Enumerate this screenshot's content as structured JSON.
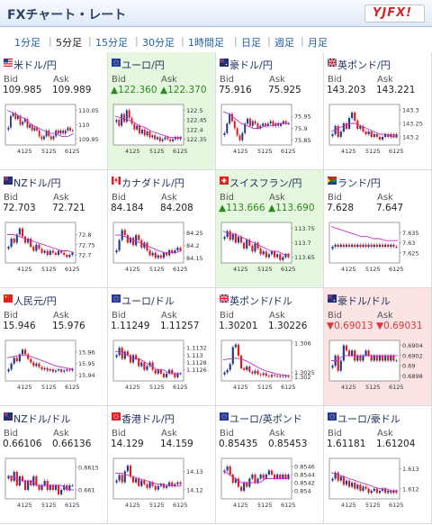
{
  "header": {
    "title": "FXチャート・レート",
    "logo_text": "YJFX!"
  },
  "tabs": [
    {
      "label": "1分足",
      "active": false
    },
    {
      "label": "5分足",
      "active": true
    },
    {
      "label": "15分足",
      "active": false
    },
    {
      "label": "30分足",
      "active": false
    },
    {
      "label": "1時間足",
      "active": false
    },
    {
      "label": "日足",
      "active": false
    },
    {
      "label": "週足",
      "active": false
    },
    {
      "label": "月足",
      "active": false
    }
  ],
  "labels": {
    "bid": "Bid",
    "ask": "Ask"
  },
  "colors": {
    "up": "#2a8a1e",
    "down": "#e03535",
    "link": "#1f5fa8",
    "candle_up": "#1d3b8f",
    "candle_down": "#e01b1b",
    "ma": "#c030c8"
  },
  "pairs": [
    {
      "name": "米ドル/円",
      "flag": "us",
      "bid": "109.985",
      "ask": "109.989",
      "trend": "none",
      "chart_data": {
        "type": "candlestick",
        "ylim": [
          109.93,
          110.07
        ],
        "yticks": [
          "110.05",
          "110",
          "109.95"
        ],
        "xticks": [
          "4125",
          "5125",
          "6125"
        ],
        "closes": [
          109.99,
          110.03,
          110.04,
          110.02,
          110.03,
          110.0,
          110.01,
          110.02,
          109.99,
          110.0,
          109.98,
          109.99,
          109.98,
          109.96,
          109.95,
          109.96,
          109.98,
          109.96,
          109.95,
          109.96,
          109.98,
          109.97,
          109.98,
          109.97,
          109.98,
          109.99,
          109.98,
          109.98
        ],
        "ma": [
          110.05,
          110.04,
          110.03,
          110.02,
          110.0,
          109.99,
          109.98,
          109.97,
          109.97,
          109.96,
          109.96,
          109.97
        ]
      }
    },
    {
      "name": "ユーロ/円",
      "flag": "eu",
      "bid": "122.360",
      "ask": "122.370",
      "trend": "up",
      "chart_data": {
        "type": "candlestick",
        "ylim": [
          122.32,
          122.53
        ],
        "yticks": [
          "122.5",
          "122.45",
          "122.4",
          "122.35"
        ],
        "xticks": [
          "4125",
          "5125",
          "6125"
        ],
        "closes": [
          122.45,
          122.42,
          122.48,
          122.44,
          122.5,
          122.46,
          122.43,
          122.4,
          122.42,
          122.38,
          122.4,
          122.37,
          122.39,
          122.36,
          122.37,
          122.35,
          122.36,
          122.34,
          122.35,
          122.36,
          122.35,
          122.34,
          122.35,
          122.36,
          122.35,
          122.36
        ],
        "ma": [
          122.47,
          122.46,
          122.45,
          122.44,
          122.42,
          122.41,
          122.39,
          122.38,
          122.37,
          122.36,
          122.36,
          122.36
        ]
      }
    },
    {
      "name": "豪ドル/円",
      "flag": "au",
      "bid": "75.916",
      "ask": "75.925",
      "trend": "none",
      "chart_data": {
        "type": "candlestick",
        "ylim": [
          75.83,
          76.0
        ],
        "yticks": [
          "75.95",
          "75.9",
          "75.85"
        ],
        "xticks": [
          "4125",
          "5125",
          "6125"
        ],
        "closes": [
          75.88,
          75.92,
          75.96,
          75.93,
          75.9,
          75.87,
          75.85,
          75.88,
          75.92,
          75.94,
          75.91,
          75.93,
          75.92,
          75.9,
          75.91,
          75.92,
          75.91,
          75.92,
          75.93,
          75.91,
          75.92,
          75.91,
          75.92,
          75.93,
          75.92,
          75.92
        ],
        "ma": [
          75.97,
          75.96,
          75.94,
          75.92,
          75.91,
          75.9,
          75.9,
          75.91,
          75.91,
          75.92,
          75.92,
          75.92
        ]
      }
    },
    {
      "name": "英ポンド/円",
      "flag": "uk",
      "bid": "143.203",
      "ask": "143.221",
      "trend": "none",
      "chart_data": {
        "type": "candlestick",
        "ylim": [
          143.17,
          143.32
        ],
        "yticks": [
          "143.3",
          "143.25",
          "143.2"
        ],
        "xticks": [
          "4125",
          "5125",
          "6125"
        ],
        "closes": [
          143.21,
          143.24,
          143.2,
          143.22,
          143.25,
          143.23,
          143.27,
          143.29,
          143.26,
          143.23,
          143.24,
          143.22,
          143.21,
          143.22,
          143.2,
          143.21,
          143.2,
          143.19,
          143.2,
          143.21,
          143.2,
          143.21,
          143.2,
          143.21
        ],
        "ma": [
          143.22,
          143.23,
          143.24,
          143.25,
          143.25,
          143.24,
          143.23,
          143.22,
          143.21,
          143.21,
          143.2,
          143.2
        ]
      }
    },
    {
      "name": "NZドル/円",
      "flag": "nz",
      "bid": "72.703",
      "ask": "72.721",
      "trend": "none",
      "chart_data": {
        "type": "candlestick",
        "ylim": [
          72.66,
          72.86
        ],
        "yticks": [
          "72.8",
          "72.75",
          "72.7"
        ],
        "xticks": [
          "4125",
          "5125",
          "6125"
        ],
        "closes": [
          72.74,
          72.78,
          72.76,
          72.8,
          72.83,
          72.79,
          72.76,
          72.78,
          72.74,
          72.72,
          72.75,
          72.73,
          72.71,
          72.72,
          72.7,
          72.72,
          72.71,
          72.7,
          72.72,
          72.71,
          72.7,
          72.69,
          72.7,
          72.71
        ],
        "ma": [
          72.8,
          72.8,
          72.79,
          72.78,
          72.77,
          72.76,
          72.75,
          72.74,
          72.73,
          72.72,
          72.72,
          72.71
        ]
      }
    },
    {
      "name": "カナダドル/円",
      "flag": "ca",
      "bid": "84.184",
      "ask": "84.208",
      "trend": "none",
      "chart_data": {
        "type": "candlestick",
        "ylim": [
          84.13,
          84.29
        ],
        "yticks": [
          "84.25",
          "84.2",
          "84.15"
        ],
        "xticks": [
          "4125",
          "5125",
          "6125"
        ],
        "closes": [
          84.18,
          84.22,
          84.26,
          84.24,
          84.21,
          84.23,
          84.2,
          84.24,
          84.22,
          84.19,
          84.21,
          84.18,
          84.16,
          84.17,
          84.15,
          84.16,
          84.15,
          84.17,
          84.16,
          84.18,
          84.17,
          84.18,
          84.19,
          84.18
        ],
        "ma": [
          84.24,
          84.24,
          84.23,
          84.22,
          84.21,
          84.2,
          84.19,
          84.18,
          84.17,
          84.17,
          84.17,
          84.18
        ]
      }
    },
    {
      "name": "スイスフラン/円",
      "flag": "ch",
      "bid": "113.666",
      "ask": "113.690",
      "trend": "up",
      "chart_data": {
        "type": "candlestick",
        "ylim": [
          113.63,
          113.77
        ],
        "yticks": [
          "113.75",
          "113.7",
          "113.65"
        ],
        "xticks": [
          "4125",
          "5125",
          "6125"
        ],
        "closes": [
          113.72,
          113.74,
          113.71,
          113.73,
          113.7,
          113.72,
          113.7,
          113.68,
          113.71,
          113.69,
          113.67,
          113.7,
          113.68,
          113.66,
          113.67,
          113.65,
          113.66,
          113.67,
          113.65,
          113.66,
          113.64,
          113.65,
          113.66,
          113.65
        ],
        "ma": [
          113.74,
          113.73,
          113.73,
          113.72,
          113.71,
          113.7,
          113.69,
          113.68,
          113.67,
          113.67,
          113.66,
          113.66
        ]
      }
    },
    {
      "name": "ランド/円",
      "flag": "za",
      "bid": "7.628",
      "ask": "7.647",
      "trend": "none",
      "chart_data": {
        "type": "candlestick",
        "ylim": [
          7.62,
          7.64
        ],
        "yticks": [
          "7.635",
          "7.63",
          "7.625"
        ],
        "xticks": [
          "4125",
          "5125",
          "6125"
        ],
        "closes": [
          7.628,
          7.629,
          7.628,
          7.629,
          7.628,
          7.629,
          7.628,
          7.629,
          7.628,
          7.629,
          7.628,
          7.629,
          7.628,
          7.629,
          7.628,
          7.629,
          7.628,
          7.629,
          7.628,
          7.629,
          7.628,
          7.629,
          7.628,
          7.628
        ],
        "ma": [
          7.638,
          7.637,
          7.636,
          7.635,
          7.634,
          7.633,
          7.633,
          7.632,
          7.632,
          7.631,
          7.631,
          7.631
        ]
      }
    },
    {
      "name": "人民元/円",
      "flag": "cn",
      "bid": "15.946",
      "ask": "15.976",
      "trend": "none",
      "chart_data": {
        "type": "candlestick",
        "ylim": [
          15.935,
          15.97
        ],
        "yticks": [
          "15.96",
          "15.95",
          "15.94"
        ],
        "xticks": [
          "4125",
          "5125",
          "6125"
        ],
        "closes": [
          15.945,
          15.95,
          15.955,
          15.952,
          15.958,
          15.962,
          15.958,
          15.954,
          15.951,
          15.948,
          15.95,
          15.947,
          15.945,
          15.946,
          15.944,
          15.945,
          15.943,
          15.944,
          15.945,
          15.943,
          15.944,
          15.945,
          15.944,
          15.945
        ],
        "ma": [
          15.955,
          15.956,
          15.957,
          15.957,
          15.956,
          15.954,
          15.952,
          15.95,
          15.948,
          15.947,
          15.946,
          15.945
        ]
      }
    },
    {
      "name": "ユーロ/ドル",
      "flag": "eu",
      "bid": "1.11249",
      "ask": "1.11257",
      "trend": "none",
      "chart_data": {
        "type": "candlestick",
        "ylim": [
          1.1123,
          1.1134
        ],
        "yticks": [
          "1.1132",
          "1.113",
          "1.1128",
          "1.1126"
        ],
        "xticks": [
          "4125",
          "5125",
          "6125"
        ],
        "closes": [
          1.113,
          1.1132,
          1.1129,
          1.1131,
          1.113,
          1.1128,
          1.113,
          1.1129,
          1.1127,
          1.1128,
          1.1126,
          1.1127,
          1.1128,
          1.1126,
          1.1125,
          1.1126,
          1.1125,
          1.1124,
          1.1125,
          1.1126,
          1.1125,
          1.1124,
          1.1125,
          1.1125
        ],
        "ma": [
          1.1131,
          1.1131,
          1.113,
          1.1129,
          1.1129,
          1.1128,
          1.1127,
          1.1126,
          1.1126,
          1.1125,
          1.1125,
          1.1125
        ]
      }
    },
    {
      "name": "英ポンド/ドル",
      "flag": "uk",
      "bid": "1.30201",
      "ask": "1.30226",
      "trend": "none",
      "chart_data": {
        "type": "candlestick",
        "ylim": [
          1.3015,
          1.3063
        ],
        "yticks": [
          "1.306",
          "1.3025",
          "1.302"
        ],
        "xticks": [
          "4125",
          "5125",
          "6125"
        ],
        "closes": [
          1.3025,
          1.3028,
          1.3035,
          1.3055,
          1.3058,
          1.3045,
          1.303,
          1.3028,
          1.3032,
          1.3026,
          1.3024,
          1.3027,
          1.3023,
          1.3022,
          1.3024,
          1.3021,
          1.302,
          1.3022,
          1.3021,
          1.302,
          1.3021,
          1.302,
          1.3021,
          1.302
        ],
        "ma": [
          1.304,
          1.3041,
          1.3042,
          1.3041,
          1.3038,
          1.3034,
          1.303,
          1.3027,
          1.3025,
          1.3023,
          1.3022,
          1.3021
        ]
      }
    },
    {
      "name": "豪ドル/ドル",
      "flag": "au",
      "bid": "0.69013",
      "ask": "0.69031",
      "trend": "down",
      "chart_data": {
        "type": "candlestick",
        "ylim": [
          0.6897,
          0.6905
        ],
        "yticks": [
          "0.6904",
          "0.6902",
          "0.69",
          "0.6898"
        ],
        "xticks": [
          "4125",
          "5125",
          "6125"
        ],
        "closes": [
          0.69,
          0.6902,
          0.6899,
          0.6901,
          0.6904,
          0.6903,
          0.6902,
          0.6903,
          0.6901,
          0.6902,
          0.6901,
          0.6902,
          0.6903,
          0.6902,
          0.6901,
          0.6902,
          0.6901,
          0.6902,
          0.6901,
          0.6902,
          0.6901,
          0.6902,
          0.6901,
          0.6901
        ],
        "ma": [
          0.6901,
          0.6901,
          0.6902,
          0.6902,
          0.6902,
          0.6902,
          0.6902,
          0.6902,
          0.6902,
          0.6902,
          0.6902,
          0.6902
        ]
      }
    },
    {
      "name": "NZドル/ドル",
      "flag": "nz",
      "bid": "0.66106",
      "ask": "0.66136",
      "trend": "none",
      "chart_data": {
        "type": "candlestick",
        "ylim": [
          0.6608,
          0.6617
        ],
        "yticks": [
          "0.6615",
          "0.661"
        ],
        "xticks": [
          "4125",
          "5125",
          "6125"
        ],
        "closes": [
          0.6613,
          0.6612,
          0.6614,
          0.6611,
          0.6613,
          0.6612,
          0.661,
          0.6612,
          0.6611,
          0.6613,
          0.6611,
          0.661,
          0.6611,
          0.6612,
          0.661,
          0.6611,
          0.661,
          0.6611,
          0.6609,
          0.661,
          0.6611,
          0.661,
          0.6611,
          0.6611
        ],
        "ma": [
          0.6613,
          0.6613,
          0.6612,
          0.6612,
          0.6612,
          0.6611,
          0.6611,
          0.6611,
          0.6611,
          0.6611,
          0.661,
          0.661
        ]
      }
    },
    {
      "name": "香港ドル/円",
      "flag": "hk",
      "bid": "14.129",
      "ask": "14.159",
      "trend": "none",
      "chart_data": {
        "type": "candlestick",
        "ylim": [
          14.115,
          14.137
        ],
        "yticks": [
          "14.13",
          "14.12"
        ],
        "xticks": [
          "4125",
          "5125",
          "6125"
        ],
        "closes": [
          14.125,
          14.128,
          14.124,
          14.13,
          14.133,
          14.127,
          14.124,
          14.126,
          14.122,
          14.125,
          14.123,
          14.121,
          14.124,
          14.122,
          14.12,
          14.122,
          14.123,
          14.121,
          14.122,
          14.124,
          14.122,
          14.123,
          14.124,
          14.123
        ],
        "ma": [
          14.129,
          14.129,
          14.128,
          14.127,
          14.126,
          14.125,
          14.124,
          14.123,
          14.123,
          14.122,
          14.122,
          14.122
        ]
      }
    },
    {
      "name": "ユーロ/英ポンド",
      "flag": "eu",
      "bid": "0.85435",
      "ask": "0.85453",
      "trend": "none",
      "chart_data": {
        "type": "candlestick",
        "ylim": [
          0.8538,
          0.8548
        ],
        "yticks": [
          "0.8546",
          "0.8544",
          "0.8542",
          "0.854"
        ],
        "xticks": [
          "4125",
          "5125",
          "6125"
        ],
        "closes": [
          0.8545,
          0.8546,
          0.8544,
          0.8542,
          0.8543,
          0.8541,
          0.854,
          0.8542,
          0.8541,
          0.8543,
          0.8544,
          0.8542,
          0.8543,
          0.8544,
          0.8543,
          0.8544,
          0.8545,
          0.8544,
          0.8543,
          0.8544,
          0.8543,
          0.8544,
          0.8543,
          0.8544
        ],
        "ma": [
          0.8545,
          0.8544,
          0.8543,
          0.8542,
          0.8542,
          0.8542,
          0.8542,
          0.8543,
          0.8543,
          0.8543,
          0.8543,
          0.8543
        ]
      }
    },
    {
      "name": "ユーロ/豪ドル",
      "flag": "eu",
      "bid": "1.61181",
      "ask": "1.61204",
      "trend": "none",
      "chart_data": {
        "type": "candlestick",
        "ylim": [
          1.6115,
          1.6135
        ],
        "yticks": [
          "1.613",
          "1.612"
        ],
        "xticks": [
          "4125",
          "5125",
          "6125"
        ],
        "closes": [
          1.6125,
          1.6128,
          1.6124,
          1.6126,
          1.6122,
          1.6124,
          1.6121,
          1.6123,
          1.612,
          1.6122,
          1.6119,
          1.6121,
          1.612,
          1.6118,
          1.6119,
          1.612,
          1.6118,
          1.6119,
          1.612,
          1.6118,
          1.6119,
          1.6118,
          1.6119,
          1.6118
        ],
        "ma": [
          1.6128,
          1.6127,
          1.6126,
          1.6125,
          1.6124,
          1.6123,
          1.6122,
          1.6121,
          1.612,
          1.612,
          1.6119,
          1.6119
        ]
      }
    }
  ]
}
